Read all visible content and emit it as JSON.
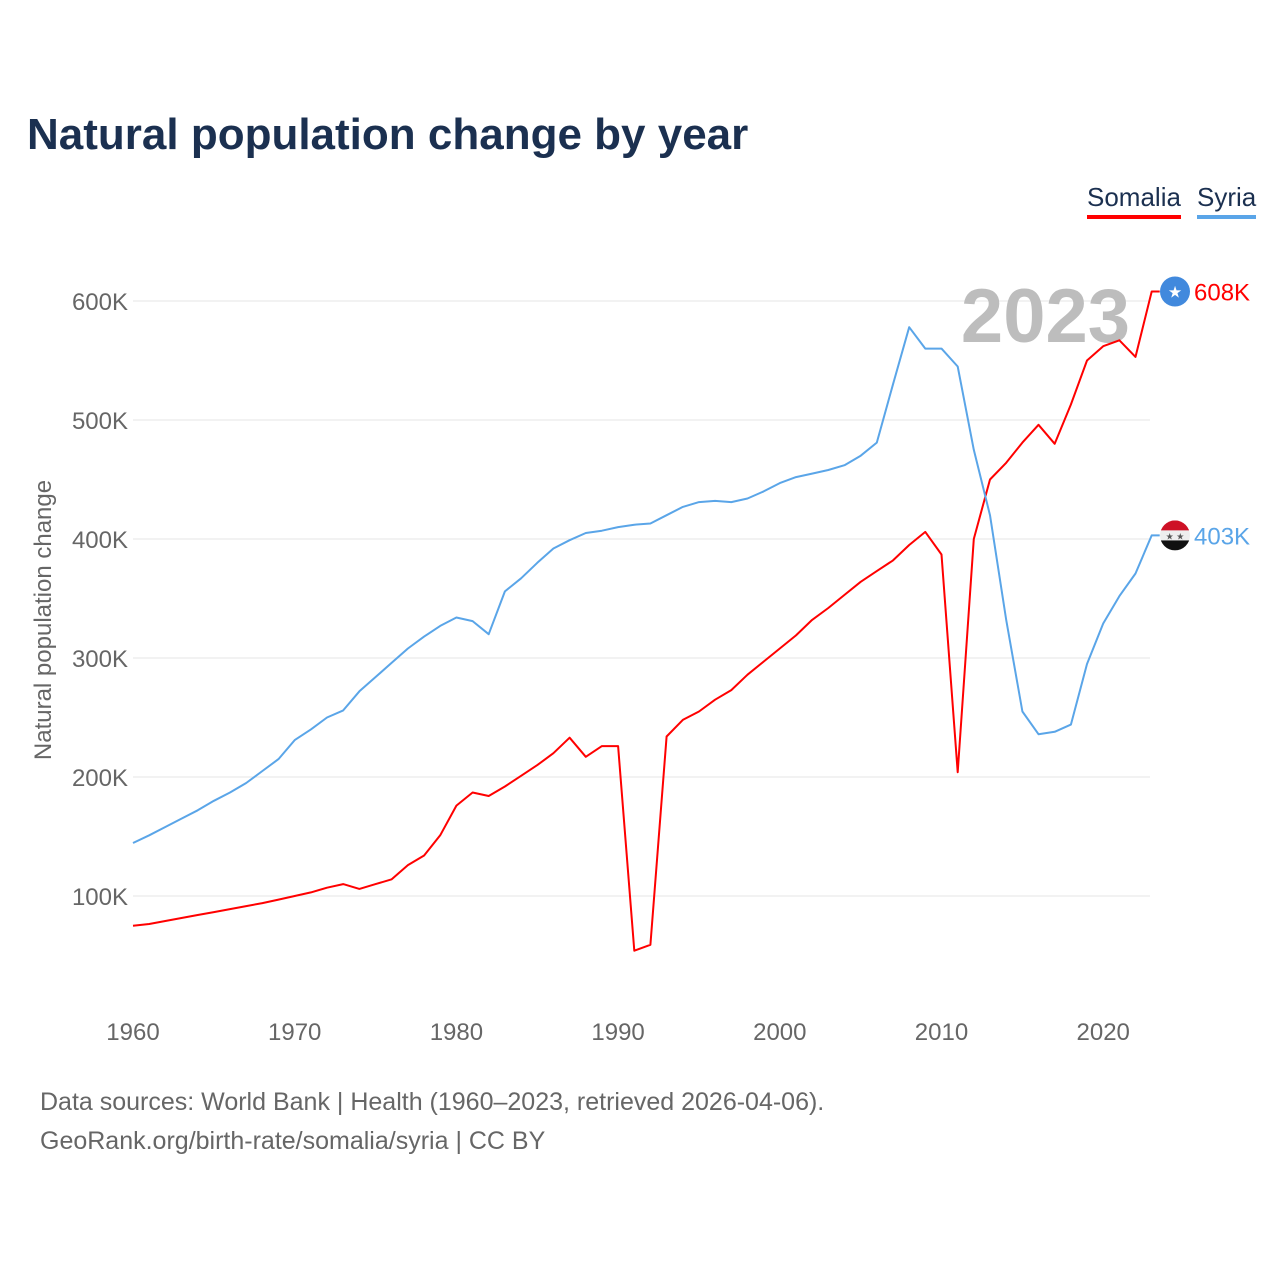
{
  "chart_data": {
    "type": "line",
    "title": "Natural population change by year",
    "xlabel": "",
    "ylabel": "Natural population change",
    "xlim": [
      1960,
      2023
    ],
    "ylim": [
      0,
      650000
    ],
    "x_ticks": [
      1960,
      1970,
      1980,
      1990,
      2000,
      2010,
      2020
    ],
    "y_ticks": [
      100000,
      200000,
      300000,
      400000,
      500000,
      600000
    ],
    "y_tick_labels": [
      "100K",
      "200K",
      "300K",
      "400K",
      "500K",
      "600K"
    ],
    "grid": true,
    "legend_position": "top-right",
    "year_watermark": "2023",
    "x": [
      1960,
      1961,
      1962,
      1963,
      1964,
      1965,
      1966,
      1967,
      1968,
      1969,
      1970,
      1971,
      1972,
      1973,
      1974,
      1975,
      1976,
      1977,
      1978,
      1979,
      1980,
      1981,
      1982,
      1983,
      1984,
      1985,
      1986,
      1987,
      1988,
      1989,
      1990,
      1991,
      1992,
      1993,
      1994,
      1995,
      1996,
      1997,
      1998,
      1999,
      2000,
      2001,
      2002,
      2003,
      2004,
      2005,
      2006,
      2007,
      2008,
      2009,
      2010,
      2011,
      2012,
      2013,
      2014,
      2015,
      2016,
      2017,
      2018,
      2019,
      2020,
      2021,
      2022,
      2023
    ],
    "series": [
      {
        "name": "Somalia",
        "color": "#ff0000",
        "end_label": "608K",
        "flag": "somalia-flag",
        "values": [
          75,
          76.5,
          79,
          81.5,
          84,
          86.5,
          89,
          91.5,
          94,
          97,
          100,
          103,
          107,
          110,
          106,
          110,
          114,
          126,
          134,
          151,
          176,
          187,
          184,
          192,
          201,
          210,
          220,
          233,
          217,
          226,
          226,
          54,
          59,
          234,
          248,
          255,
          265,
          273,
          286,
          297,
          308,
          319,
          332,
          342,
          353,
          364,
          373,
          382,
          395,
          406,
          387,
          204,
          400,
          450,
          464,
          481,
          496,
          480,
          513,
          550,
          562,
          567,
          553,
          608
        ]
      },
      {
        "name": "Syria",
        "color": "#5aa5e8",
        "end_label": "403K",
        "flag": "syria-flag",
        "values": [
          144.5,
          151,
          158,
          165,
          172,
          180,
          187,
          195,
          205,
          215,
          231,
          240,
          250,
          256,
          272,
          284,
          296,
          308,
          318,
          327,
          334,
          331,
          320,
          356,
          367,
          380,
          392,
          399,
          405,
          407,
          410,
          412,
          413,
          420,
          427,
          431,
          432,
          431,
          434,
          440,
          447,
          452,
          455,
          458,
          462,
          470,
          481,
          530,
          578,
          560,
          560,
          545,
          475,
          420,
          332,
          255,
          236,
          238,
          244,
          295,
          329,
          352,
          371,
          403
        ]
      }
    ],
    "value_unit": "thousands"
  },
  "sources": {
    "line1": "Data sources: World Bank | Health (1960–2023, retrieved 2026-04-06).",
    "line2": "GeoRank.org/birth-rate/somalia/syria | CC BY"
  }
}
